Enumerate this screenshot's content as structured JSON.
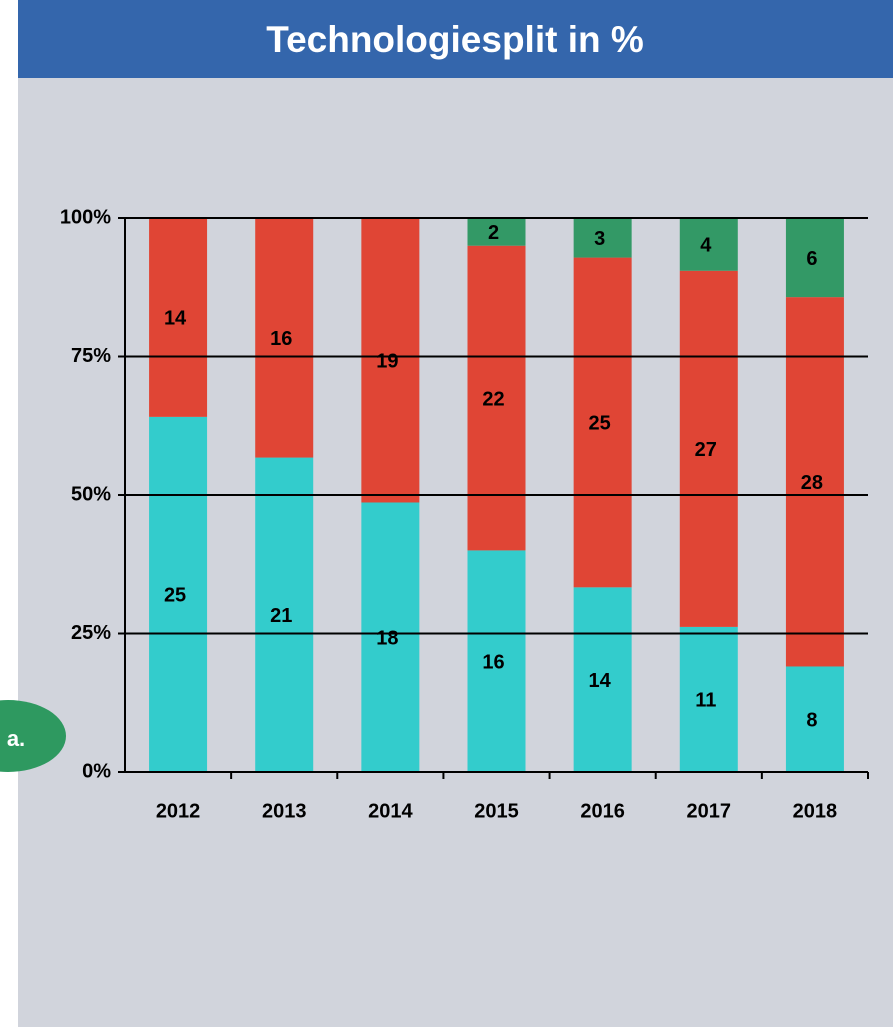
{
  "chart_data": {
    "type": "bar",
    "stacked": "percent",
    "title": "Technologiesplit in %",
    "annotation": "a.",
    "categories": [
      "2012",
      "2013",
      "2014",
      "2015",
      "2016",
      "2017",
      "2018"
    ],
    "series": [
      {
        "color": "#33cccc",
        "values": [
          25,
          21,
          18,
          16,
          14,
          11,
          8
        ]
      },
      {
        "color": "#e04535",
        "values": [
          14,
          16,
          19,
          22,
          25,
          27,
          28
        ]
      },
      {
        "color": "#339966",
        "values": [
          null,
          null,
          null,
          2,
          3,
          4,
          6
        ]
      }
    ],
    "ylim": [
      0,
      100
    ],
    "yticks": [
      {
        "value": 0,
        "label": "0%"
      },
      {
        "value": 25,
        "label": "25%"
      },
      {
        "value": 50,
        "label": "50%"
      },
      {
        "value": 75,
        "label": "75%"
      },
      {
        "value": 100,
        "label": "100%"
      }
    ],
    "grid": true
  }
}
